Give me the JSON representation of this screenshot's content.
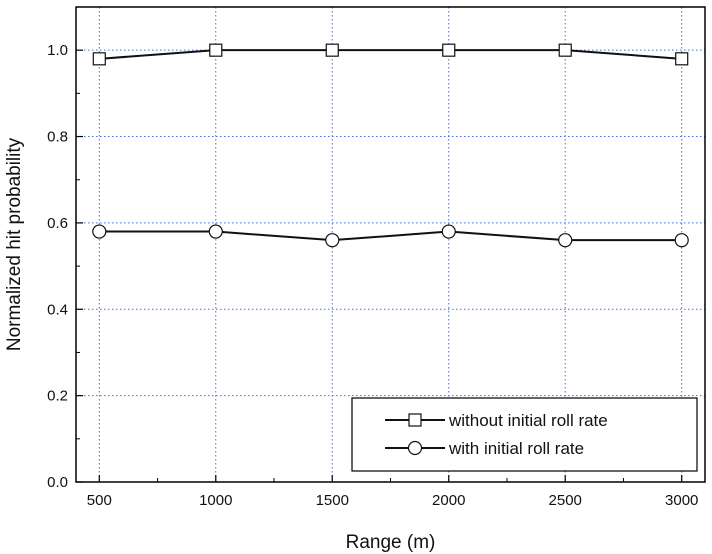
{
  "chart_data": {
    "type": "line",
    "title": "",
    "xlabel": "Range (m)",
    "ylabel": "Normalized hit probability",
    "x": [
      500,
      1000,
      1500,
      2000,
      2500,
      3000
    ],
    "xlim": [
      400,
      3100
    ],
    "ylim": [
      0.0,
      1.1
    ],
    "xticks": [
      500,
      1000,
      1500,
      2000,
      2500,
      3000
    ],
    "yticks": [
      0.0,
      0.2,
      0.4,
      0.6,
      0.8,
      1.0
    ],
    "xtick_labels": [
      "500",
      "1000",
      "1500",
      "2000",
      "2500",
      "3000"
    ],
    "ytick_labels": [
      "0.0",
      "0.2",
      "0.4",
      "0.6",
      "0.8",
      "1.0"
    ],
    "grid": true,
    "grid_color": "#4a6fd6",
    "legend_position": "bottom-right",
    "series": [
      {
        "name": "without initial roll rate",
        "marker": "square",
        "color": "#111111",
        "values": [
          0.98,
          1.0,
          1.0,
          1.0,
          1.0,
          0.98
        ]
      },
      {
        "name": "with initial roll rate",
        "marker": "circle",
        "color": "#111111",
        "values": [
          0.58,
          0.58,
          0.56,
          0.58,
          0.56,
          0.56
        ]
      }
    ]
  }
}
